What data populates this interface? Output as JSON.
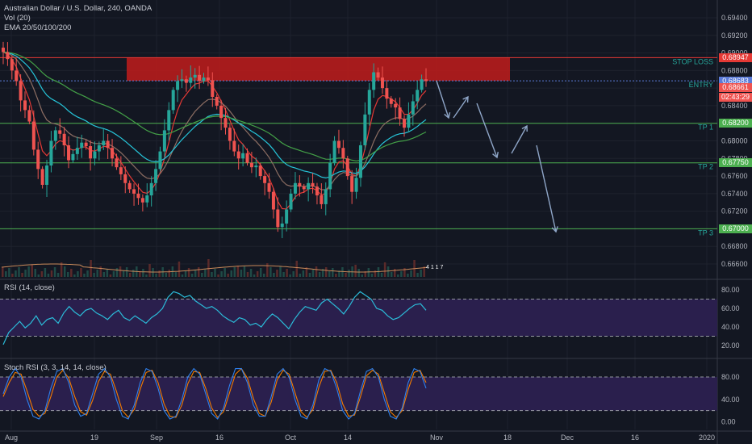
{
  "header": {
    "symbol_line": "Australian Dollar / U.S. Dollar, 240, OANDA",
    "vol_line": "Vol (20)",
    "ema_line": "EMA 20/50/100/200"
  },
  "colors": {
    "background": "#131722",
    "grid": "#1e222d",
    "candle_up": "#26a69a",
    "candle_down": "#ef5350",
    "ema20": "#e53935",
    "ema50": "#8d6e63",
    "ema100": "#26c6da",
    "ema200": "#43a047",
    "zone": "#b71c1c",
    "level_line": "#4caf50",
    "stop_line": "#e53935",
    "entry_line": "#5b7bd8",
    "rsi": "#2bbbd8",
    "rsi_band": "#2a1f4d",
    "stoch_k": "#2f80ed",
    "stoch_d": "#f57c00",
    "arrows": "#8fa6c8"
  },
  "chart_data": {
    "type": "candlestick",
    "price_axis": {
      "ticks": [
        "0.69400",
        "0.69200",
        "0.69000",
        "0.68800",
        "0.68600",
        "0.68400",
        "0.68200",
        "0.68000",
        "0.67800",
        "0.67600",
        "0.67400",
        "0.67200",
        "0.67000",
        "0.66800",
        "0.66600"
      ],
      "range": [
        0.665,
        0.695
      ]
    },
    "time_axis": {
      "labels": [
        "Aug",
        "19",
        "Sep",
        "16",
        "Oct",
        "14",
        "Nov",
        "18",
        "Dec",
        "16",
        "2020"
      ]
    },
    "levels": [
      {
        "label": "STOP LOSS",
        "price": 0.68947,
        "tag": "0.68947",
        "tag_color": "#e53935",
        "kind": "stop"
      },
      {
        "label": "ENTRY",
        "price": 0.68683,
        "tag": "0.68683",
        "tag_color": "#5b7bd8",
        "kind": "entry"
      },
      {
        "label": "TP 1",
        "price": 0.682,
        "tag": "0.68200",
        "tag_color": "#4caf50",
        "kind": "tp"
      },
      {
        "label": "TP 2",
        "price": 0.6775,
        "tag": "0.67750",
        "tag_color": "#4caf50",
        "kind": "tp"
      },
      {
        "label": "TP 3",
        "price": 0.67,
        "tag": "0.67000",
        "tag_color": "#4caf50",
        "kind": "tp"
      }
    ],
    "current_price": {
      "value": "0.68661",
      "countdown": "02:43:29"
    },
    "stop_zone": {
      "from_price": 0.68947,
      "to_price": 0.68683
    },
    "series_closes": [
      0.6901,
      0.6893,
      0.688,
      0.6868,
      0.6846,
      0.6835,
      0.6822,
      0.679,
      0.6768,
      0.675,
      0.6772,
      0.68,
      0.6812,
      0.6808,
      0.6795,
      0.6778,
      0.6785,
      0.6792,
      0.6798,
      0.6794,
      0.678,
      0.6788,
      0.6795,
      0.68,
      0.6792,
      0.678,
      0.677,
      0.6762,
      0.6752,
      0.6745,
      0.674,
      0.6735,
      0.673,
      0.6738,
      0.6752,
      0.6768,
      0.6788,
      0.6812,
      0.6835,
      0.6858,
      0.6868,
      0.687,
      0.6866,
      0.6872,
      0.6875,
      0.6868,
      0.6872,
      0.6869,
      0.685,
      0.684,
      0.6826,
      0.6815,
      0.68,
      0.6788,
      0.678,
      0.6786,
      0.6775,
      0.677,
      0.6772,
      0.676,
      0.6752,
      0.6742,
      0.6722,
      0.6702,
      0.6706,
      0.6722,
      0.674,
      0.6752,
      0.6748,
      0.6745,
      0.6752,
      0.6748,
      0.6738,
      0.6728,
      0.6745,
      0.6775,
      0.68,
      0.6792,
      0.678,
      0.676,
      0.6742,
      0.6758,
      0.6795,
      0.683,
      0.6858,
      0.6878,
      0.6872,
      0.686,
      0.6848,
      0.6842,
      0.6838,
      0.6825,
      0.6815,
      0.683,
      0.6845,
      0.6858,
      0.687,
      0.6868
    ],
    "volume_counter": "4 1 1 7",
    "rsi": {
      "title": "RSI (14, close)",
      "range": [
        10,
        90
      ],
      "upper_band": 70,
      "lower_band": 30,
      "ticks": [
        "80.00",
        "60.00",
        "40.00",
        "20.00"
      ],
      "values": [
        21,
        34,
        40,
        46,
        39,
        44,
        52,
        42,
        48,
        50,
        44,
        55,
        62,
        56,
        52,
        58,
        60,
        55,
        52,
        48,
        54,
        58,
        50,
        47,
        52,
        48,
        44,
        50,
        54,
        60,
        72,
        78,
        76,
        72,
        74,
        68,
        64,
        60,
        62,
        58,
        52,
        48,
        45,
        50,
        48,
        42,
        44,
        40,
        48,
        54,
        50,
        44,
        38,
        48,
        56,
        62,
        60,
        58,
        66,
        70,
        65,
        60,
        54,
        62,
        72,
        78,
        74,
        70,
        60,
        58,
        52,
        48,
        50,
        55,
        60,
        64,
        65,
        58
      ]
    },
    "stoch_rsi": {
      "title": "Stoch RSI (3, 3, 14, 14, close)",
      "range": [
        -10,
        110
      ],
      "upper_band": 80,
      "lower_band": 20,
      "ticks": [
        "80.00",
        "40.00",
        "0.00"
      ],
      "k_values": [
        50,
        80,
        95,
        80,
        40,
        10,
        5,
        20,
        60,
        90,
        95,
        70,
        30,
        10,
        15,
        50,
        85,
        95,
        80,
        40,
        10,
        5,
        30,
        70,
        95,
        90,
        60,
        20,
        5,
        10,
        40,
        80,
        95,
        85,
        50,
        15,
        5,
        25,
        65,
        95,
        95,
        70,
        30,
        10,
        10,
        45,
        85,
        95,
        80,
        40,
        10,
        5,
        30,
        75,
        95,
        90,
        60,
        20,
        5,
        15,
        55,
        90,
        95,
        80,
        40,
        10,
        5,
        25,
        70,
        95,
        90,
        60
      ],
      "d_values": [
        45,
        70,
        88,
        85,
        55,
        22,
        10,
        15,
        45,
        80,
        92,
        78,
        45,
        18,
        12,
        38,
        72,
        90,
        85,
        55,
        20,
        8,
        22,
        58,
        88,
        92,
        70,
        32,
        10,
        8,
        30,
        68,
        90,
        88,
        60,
        25,
        8,
        18,
        52,
        85,
        95,
        78,
        42,
        15,
        10,
        35,
        75,
        92,
        85,
        52,
        18,
        8,
        22,
        62,
        90,
        92,
        70,
        32,
        10,
        12,
        45,
        82,
        92,
        85,
        52,
        18,
        8,
        20,
        58,
        88,
        92,
        70
      ]
    }
  }
}
